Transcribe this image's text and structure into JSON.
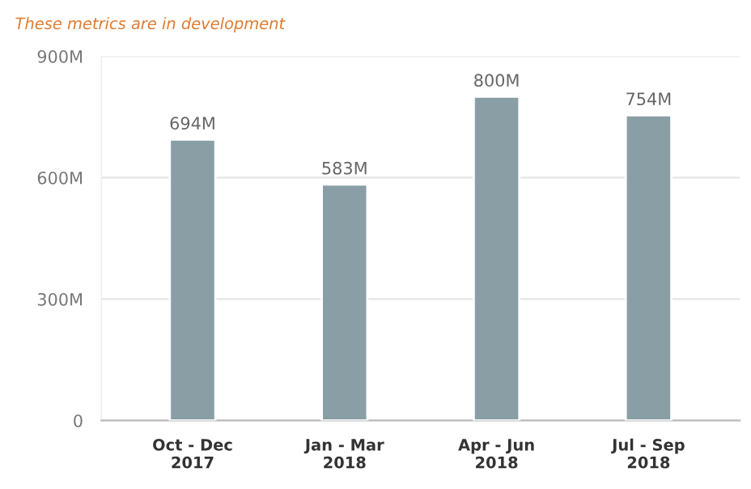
{
  "chart_data": {
    "type": "bar",
    "categories": [
      "Oct - Dec\n2017",
      "Jan - Mar\n2018",
      "Apr - Jun\n2018",
      "Jul - Sep\n2018"
    ],
    "values": [
      694,
      583,
      800,
      754
    ],
    "value_labels": [
      "694M",
      "583M",
      "800M",
      "754M"
    ],
    "color": "#8a9ea6",
    "ylim": [
      0,
      900
    ],
    "yticks": [
      {
        "value": 0,
        "label": "0"
      },
      {
        "value": 300,
        "label": "300M"
      },
      {
        "value": 600,
        "label": "600M"
      },
      {
        "value": 900,
        "label": "900M"
      }
    ],
    "grid": "y",
    "annotations": [
      "These metrics are in development"
    ]
  }
}
